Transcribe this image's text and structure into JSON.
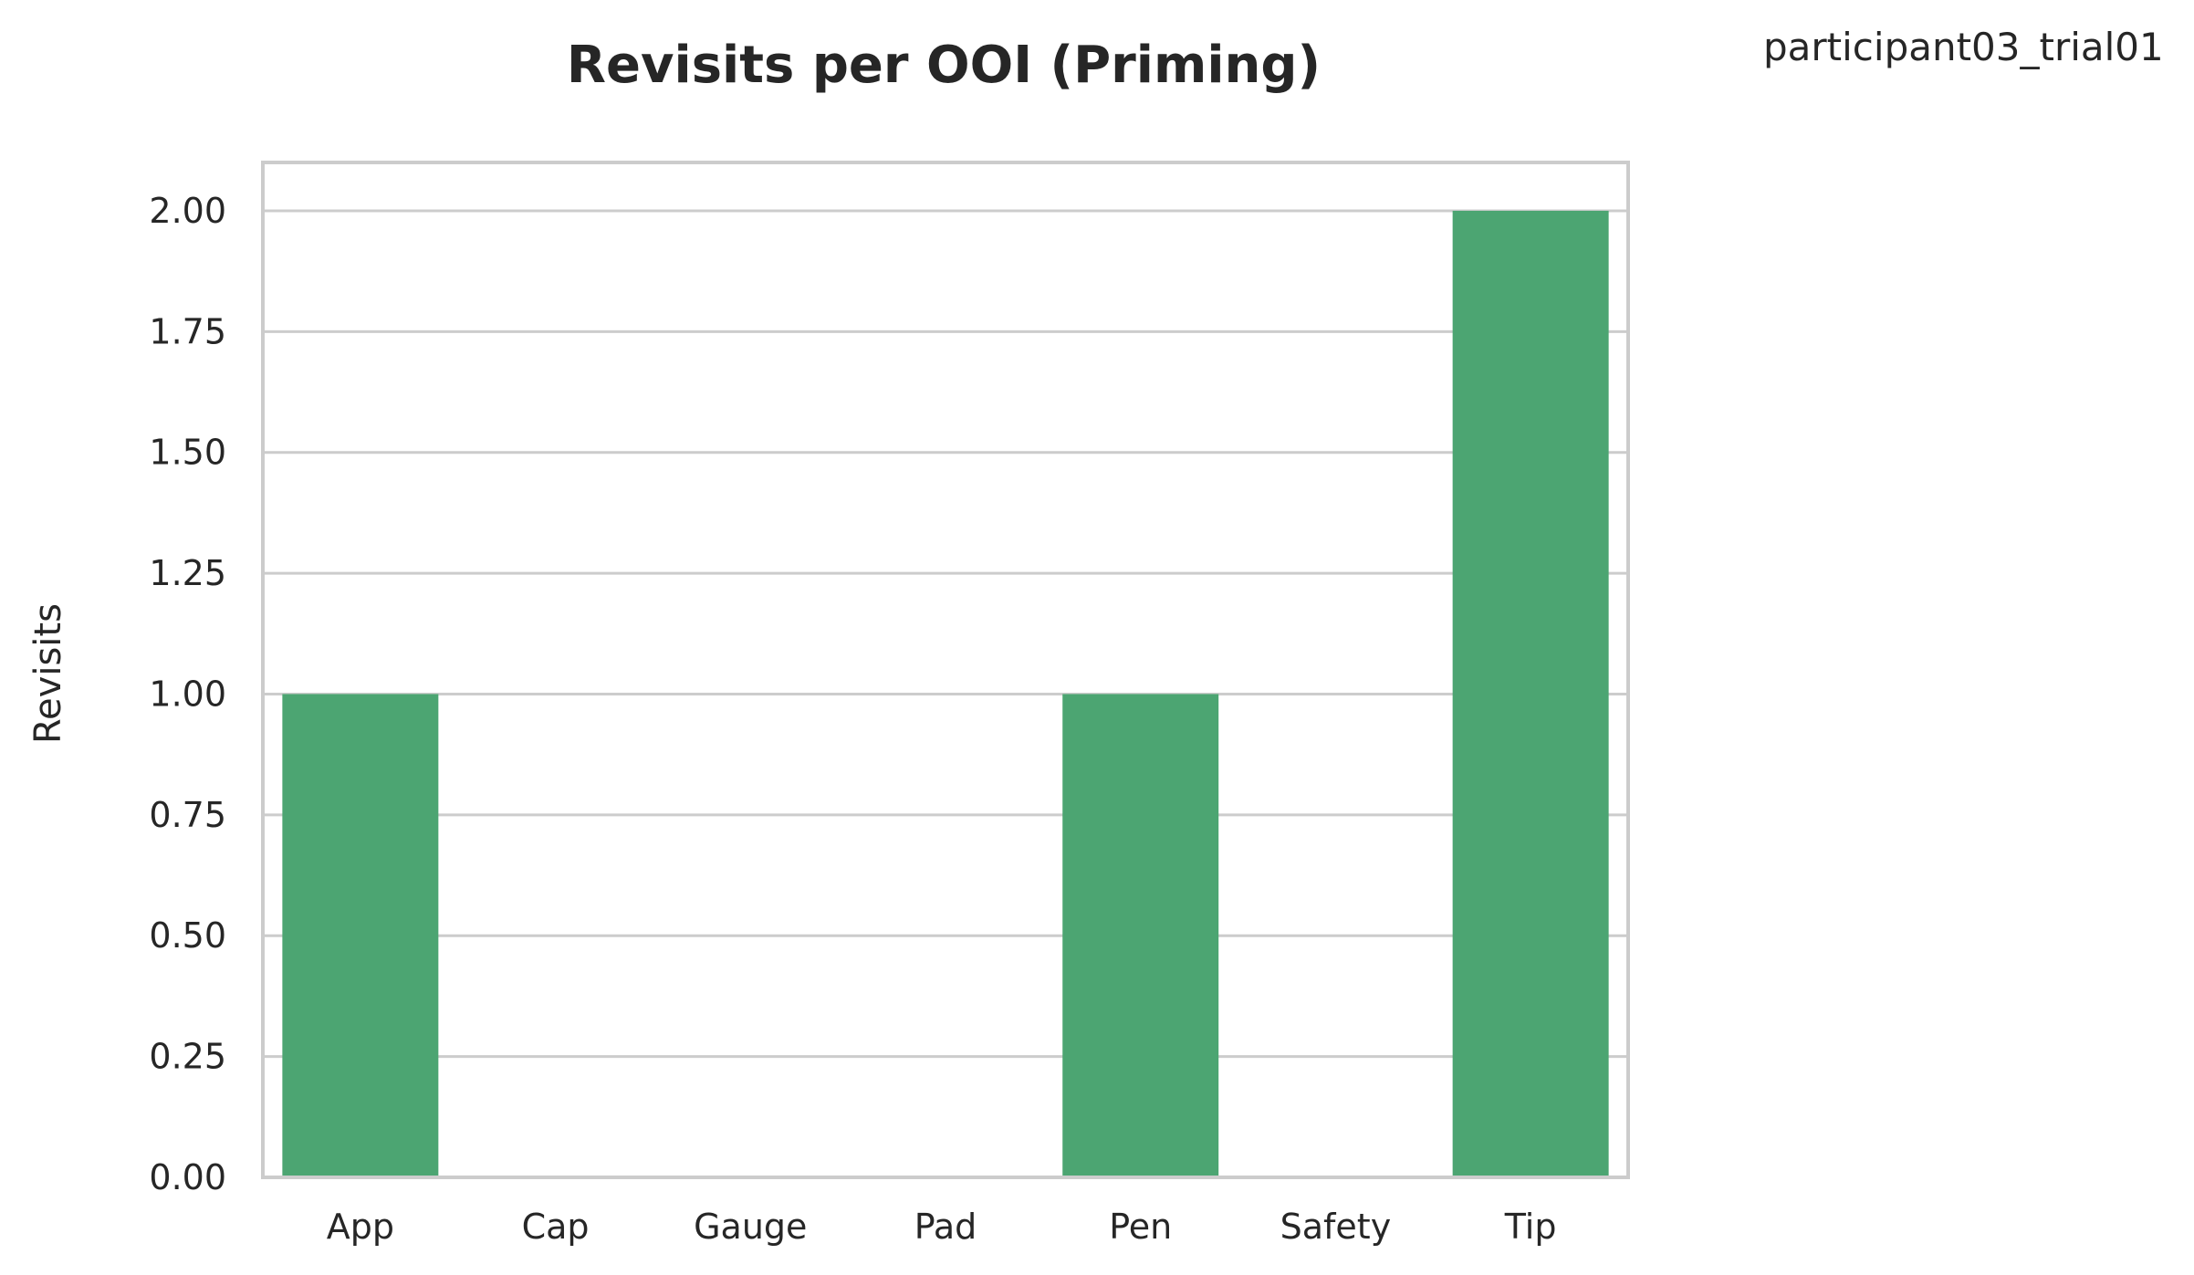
{
  "corner_label": "participant03_trial01",
  "chart_data": {
    "type": "bar",
    "title": "Revisits per OOI (Priming)",
    "xlabel": "",
    "ylabel": "Revisits",
    "categories": [
      "App",
      "Cap",
      "Gauge",
      "Pad",
      "Pen",
      "Safety",
      "Tip"
    ],
    "values": [
      1,
      0,
      0,
      0,
      1,
      0,
      2
    ],
    "ylim": [
      0,
      2.1
    ],
    "yticks": [
      "0.00",
      "0.25",
      "0.50",
      "0.75",
      "1.00",
      "1.25",
      "1.50",
      "1.75",
      "2.00"
    ],
    "grid": true,
    "bar_color": "#4ca572",
    "grid_color": "#cccccc"
  }
}
